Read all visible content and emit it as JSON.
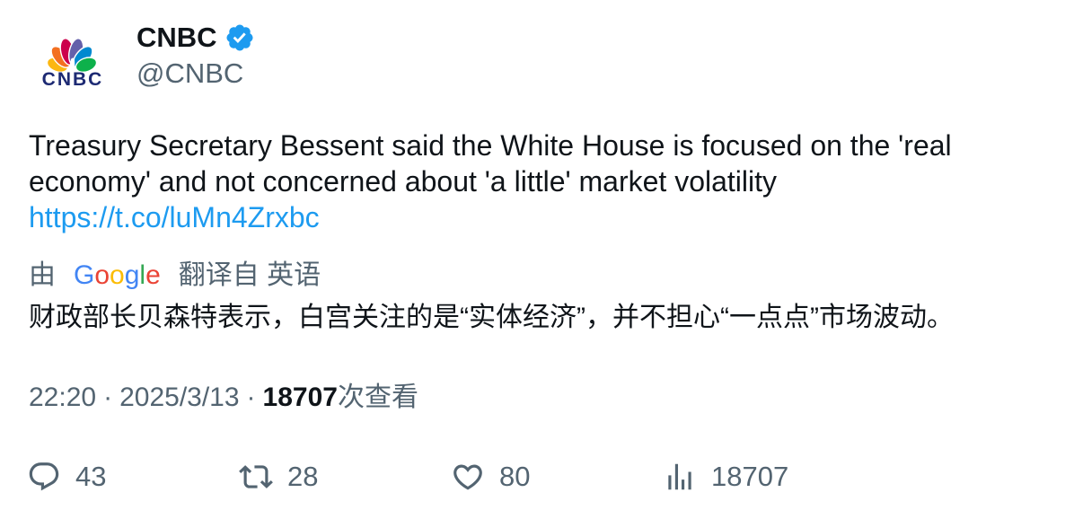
{
  "author": {
    "name": "CNBC",
    "handle": "@CNBC",
    "verified": true,
    "avatar_icon": "cnbc-peacock-logo",
    "avatar_logo_text": "CNBC",
    "peacock_colors": [
      "#FCB711",
      "#F37021",
      "#CC004C",
      "#6460AA",
      "#0089D0",
      "#0DB14B"
    ],
    "logo_text_color": "#1D2A73",
    "verified_icon": "verified-badge-icon",
    "verified_badge_color": "#1D9BF0"
  },
  "tweet": {
    "text": "Treasury Secretary Bessent said the White House is focused on the 'real economy' and not concerned about 'a little' market volatility",
    "link": "https://t.co/luMn4Zrxbc"
  },
  "translation": {
    "prefix": "由",
    "provider": "Google",
    "provider_colors": [
      "#4285F4",
      "#EA4335",
      "#FBBC05",
      "#4285F4",
      "#34A853",
      "#EA4335"
    ],
    "suffix": "翻译自 英语",
    "text": "财政部长贝森特表示，白宫关注的是“实体经济”，并不担心“一点点”市场波动。"
  },
  "meta": {
    "time": "22:20",
    "separator": "·",
    "date": "2025/3/13",
    "views_count": "18707",
    "views_label": "次查看"
  },
  "actions": [
    {
      "icon": "reply-icon",
      "count": "43"
    },
    {
      "icon": "retweet-icon",
      "count": "28"
    },
    {
      "icon": "heart-icon",
      "count": "80"
    },
    {
      "icon": "views-icon",
      "count": "18707"
    }
  ],
  "colors": {
    "text": "#0F1419",
    "secondary": "#536471",
    "link": "#1D9BF0",
    "background": "#FFFFFF"
  }
}
